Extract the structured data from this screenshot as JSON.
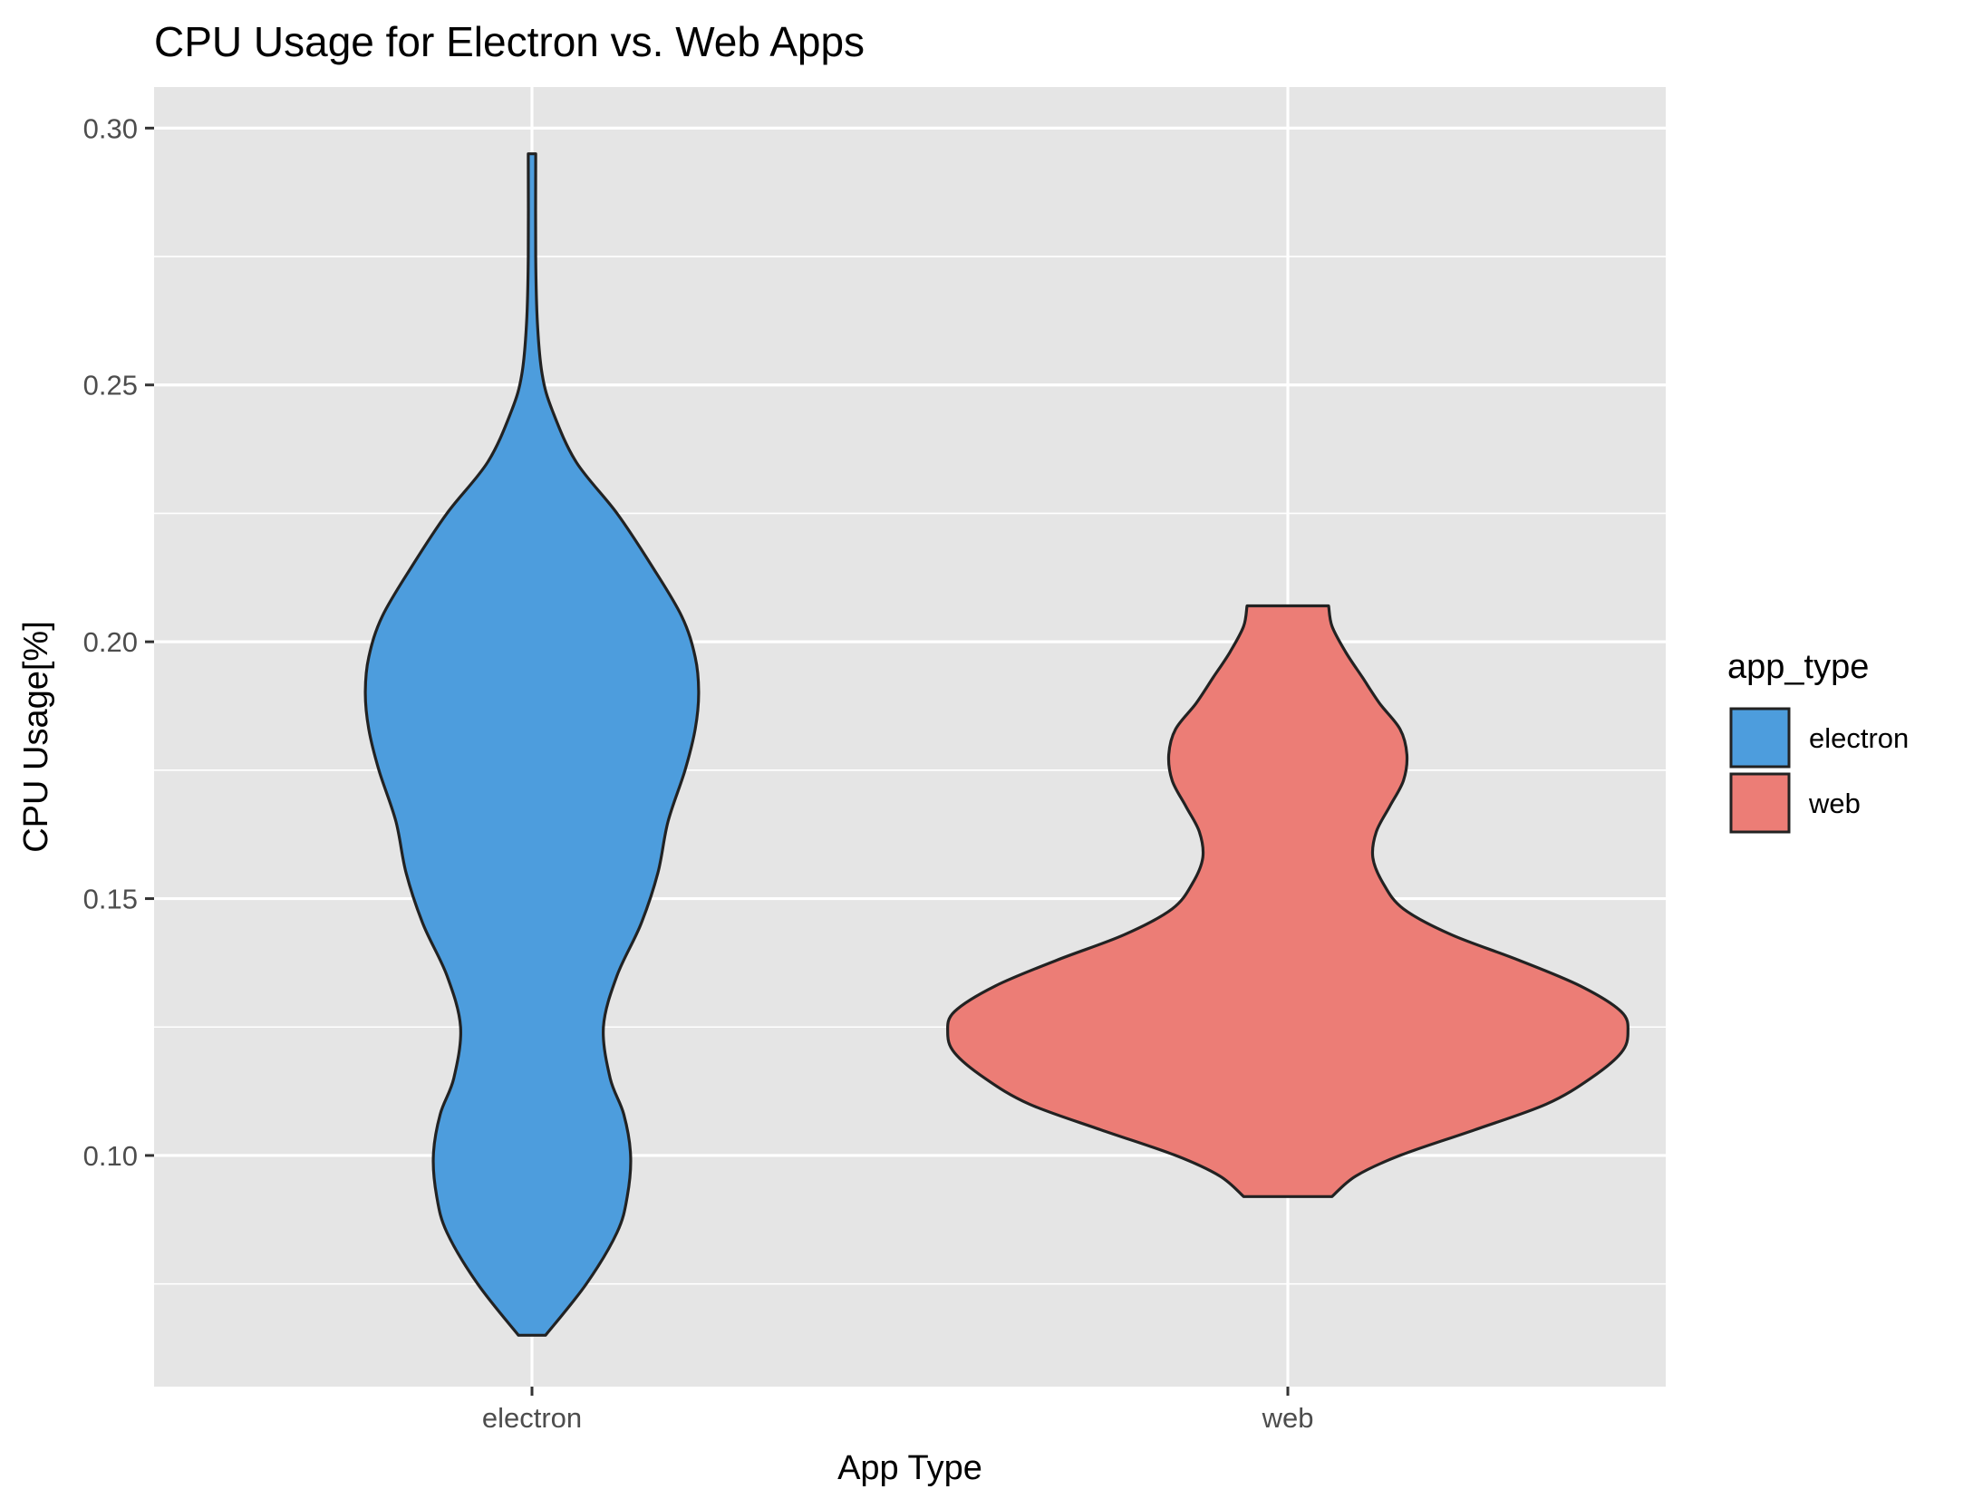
{
  "chart_data": {
    "type": "violin",
    "title": "CPU Usage for Electron vs. Web Apps",
    "xlabel": "App Type",
    "ylabel": "CPU Usage[%]",
    "ylim": [
      0.055,
      0.308
    ],
    "y_ticks": [
      0.1,
      0.15,
      0.2,
      0.25,
      0.3
    ],
    "y_tick_labels": [
      "0.10",
      "0.15",
      "0.20",
      "0.25",
      "0.30"
    ],
    "grid": true,
    "legend": {
      "title": "app_type",
      "position": "right"
    },
    "categories": [
      "electron",
      "web"
    ],
    "series": [
      {
        "name": "electron",
        "color": "#4d9ddd",
        "y_min": 0.065,
        "y_max": 0.295,
        "density_profile": [
          [
            0.065,
            0.04
          ],
          [
            0.075,
            0.16
          ],
          [
            0.085,
            0.25
          ],
          [
            0.092,
            0.28
          ],
          [
            0.1,
            0.29
          ],
          [
            0.108,
            0.27
          ],
          [
            0.115,
            0.23
          ],
          [
            0.125,
            0.21
          ],
          [
            0.135,
            0.25
          ],
          [
            0.145,
            0.32
          ],
          [
            0.155,
            0.37
          ],
          [
            0.165,
            0.4
          ],
          [
            0.175,
            0.45
          ],
          [
            0.183,
            0.48
          ],
          [
            0.19,
            0.49
          ],
          [
            0.197,
            0.48
          ],
          [
            0.205,
            0.44
          ],
          [
            0.215,
            0.35
          ],
          [
            0.225,
            0.25
          ],
          [
            0.235,
            0.13
          ],
          [
            0.245,
            0.06
          ],
          [
            0.252,
            0.03
          ],
          [
            0.262,
            0.016
          ],
          [
            0.275,
            0.011
          ],
          [
            0.295,
            0.011
          ]
        ]
      },
      {
        "name": "web",
        "color": "#ec7d76",
        "y_min": 0.092,
        "y_max": 0.207,
        "density_profile": [
          [
            0.092,
            0.13
          ],
          [
            0.096,
            0.2
          ],
          [
            0.1,
            0.33
          ],
          [
            0.105,
            0.55
          ],
          [
            0.11,
            0.76
          ],
          [
            0.115,
            0.89
          ],
          [
            0.12,
            0.98
          ],
          [
            0.124,
            1.0
          ],
          [
            0.128,
            0.98
          ],
          [
            0.133,
            0.86
          ],
          [
            0.138,
            0.68
          ],
          [
            0.143,
            0.48
          ],
          [
            0.148,
            0.34
          ],
          [
            0.153,
            0.28
          ],
          [
            0.158,
            0.25
          ],
          [
            0.163,
            0.26
          ],
          [
            0.168,
            0.3
          ],
          [
            0.173,
            0.34
          ],
          [
            0.178,
            0.35
          ],
          [
            0.183,
            0.33
          ],
          [
            0.188,
            0.27
          ],
          [
            0.193,
            0.22
          ],
          [
            0.198,
            0.17
          ],
          [
            0.203,
            0.13
          ],
          [
            0.207,
            0.12
          ]
        ]
      }
    ]
  }
}
